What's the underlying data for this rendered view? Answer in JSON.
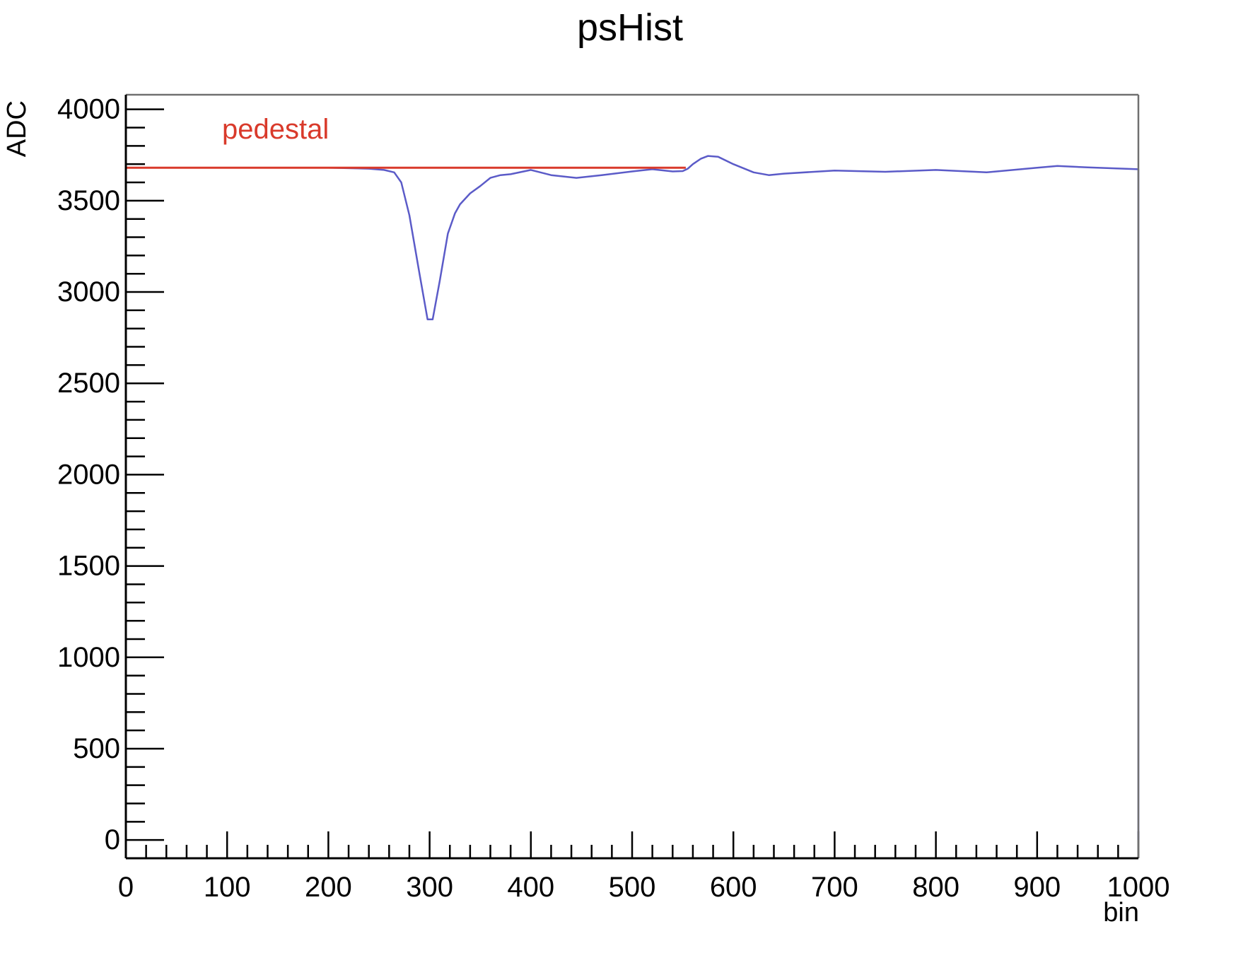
{
  "chart_data": {
    "type": "line",
    "title": "psHist",
    "xlabel": "bin",
    "ylabel": "ADC",
    "xlim": [
      0,
      1000
    ],
    "ylim": [
      -100,
      4080
    ],
    "x_ticks": [
      0,
      100,
      200,
      300,
      400,
      500,
      600,
      700,
      800,
      900,
      1000
    ],
    "y_ticks": [
      0,
      500,
      1000,
      1500,
      2000,
      2500,
      3000,
      3500,
      4000
    ],
    "x_minor_step": 20,
    "y_minor_step": 100,
    "grid": false,
    "legend": false,
    "colors": {
      "signal": "#5b5bc8",
      "pedestal": "#d93a2b",
      "axes": "#000000"
    },
    "series": [
      {
        "key": "signal",
        "x": [
          0,
          50,
          100,
          150,
          200,
          240,
          255,
          265,
          272,
          280,
          290,
          298,
          303,
          310,
          318,
          325,
          330,
          340,
          350,
          360,
          370,
          380,
          400,
          420,
          445,
          470,
          500,
          520,
          540,
          550,
          555,
          560,
          568,
          575,
          585,
          600,
          620,
          635,
          650,
          700,
          750,
          800,
          850,
          900,
          920,
          950,
          1000
        ],
        "y": [
          3680,
          3680,
          3680,
          3680,
          3680,
          3675,
          3668,
          3655,
          3600,
          3420,
          3100,
          2850,
          2850,
          3060,
          3320,
          3430,
          3480,
          3540,
          3580,
          3625,
          3640,
          3645,
          3668,
          3640,
          3625,
          3640,
          3660,
          3672,
          3660,
          3662,
          3675,
          3700,
          3730,
          3745,
          3740,
          3700,
          3655,
          3640,
          3648,
          3665,
          3658,
          3668,
          3655,
          3680,
          3690,
          3682,
          3672
        ]
      },
      {
        "key": "pedestal",
        "x": [
          0,
          553
        ],
        "y": [
          3680,
          3680
        ]
      }
    ],
    "annotations": [
      {
        "text": "pedestal",
        "x": 95,
        "y": 3840
      }
    ]
  }
}
